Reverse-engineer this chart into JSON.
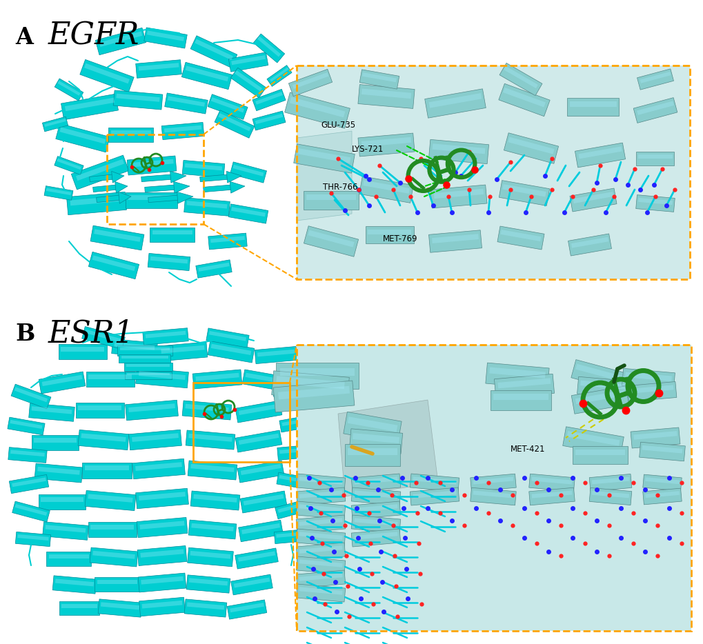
{
  "figure_width": 10.2,
  "figure_height": 9.34,
  "dpi": 100,
  "background_color": "#ffffff",
  "panel_A": {
    "label": "A",
    "title": "EGFR",
    "title_fontsize": 32,
    "label_fontsize": 24,
    "label_fontweight": "bold",
    "box_color": "#FFA500",
    "protein_color": "#00CED1",
    "ligand_color": "#228B22"
  },
  "panel_B": {
    "label": "B",
    "title": "ESR1",
    "title_fontsize": 32,
    "label_fontsize": 24,
    "label_fontweight": "bold",
    "box_color": "#FFA500",
    "protein_color": "#00CED1",
    "ligand_color": "#228B22"
  },
  "residues_A": [
    "GLU-735",
    "LYS-721",
    "THR-766",
    "MET-769"
  ],
  "residues_B": [
    "MET-421"
  ]
}
